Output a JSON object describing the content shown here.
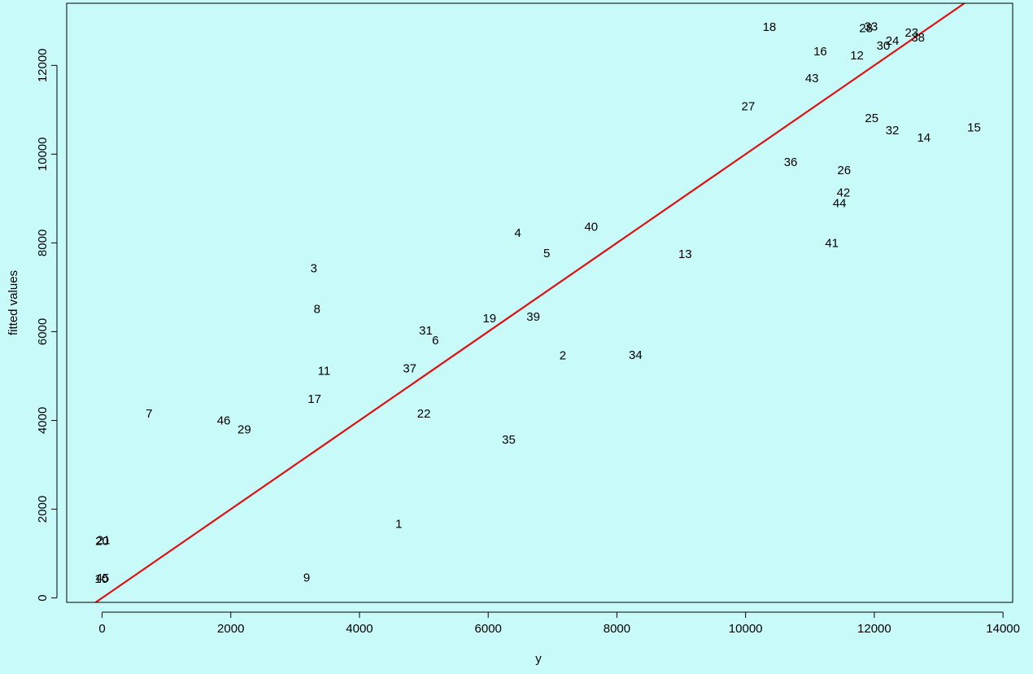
{
  "chart_data": {
    "type": "scatter",
    "title": "",
    "xlabel": "y",
    "ylabel": "fitted values",
    "xlim": [
      -550,
      14150
    ],
    "ylim": [
      -100,
      13400
    ],
    "xticks": [
      0,
      2000,
      4000,
      6000,
      8000,
      10000,
      12000,
      14000
    ],
    "yticks": [
      0,
      2000,
      4000,
      6000,
      8000,
      10000,
      12000
    ],
    "xtick_labels": [
      "0",
      "2000",
      "4000",
      "6000",
      "8000",
      "10000",
      "12000",
      "14000"
    ],
    "ytick_labels": [
      "0",
      "2000",
      "4000",
      "6000",
      "8000",
      "10000",
      "12000"
    ],
    "grid": false,
    "reference_line": {
      "slope": 1,
      "intercept": 0,
      "color": "#e01010"
    },
    "points": [
      {
        "label": "1",
        "x": 4610,
        "y": 1660
      },
      {
        "label": "2",
        "x": 7160,
        "y": 5460
      },
      {
        "label": "3",
        "x": 3290,
        "y": 7420
      },
      {
        "label": "4",
        "x": 6460,
        "y": 8220
      },
      {
        "label": "5",
        "x": 6910,
        "y": 7760
      },
      {
        "label": "6",
        "x": 5180,
        "y": 5800
      },
      {
        "label": "7",
        "x": 730,
        "y": 4150
      },
      {
        "label": "8",
        "x": 3340,
        "y": 6500
      },
      {
        "label": "9",
        "x": 3180,
        "y": 450
      },
      {
        "label": "10",
        "x": -10,
        "y": 420
      },
      {
        "label": "11",
        "x": 3450,
        "y": 5110
      },
      {
        "label": "12",
        "x": 11730,
        "y": 12220
      },
      {
        "label": "13",
        "x": 9060,
        "y": 7740
      },
      {
        "label": "14",
        "x": 12770,
        "y": 10360
      },
      {
        "label": "15",
        "x": 13550,
        "y": 10590
      },
      {
        "label": "16",
        "x": 11160,
        "y": 12310
      },
      {
        "label": "17",
        "x": 3300,
        "y": 4480
      },
      {
        "label": "18",
        "x": 10370,
        "y": 12860
      },
      {
        "label": "19",
        "x": 6020,
        "y": 6290
      },
      {
        "label": "20",
        "x": 0,
        "y": 1280
      },
      {
        "label": "21",
        "x": 20,
        "y": 1290
      },
      {
        "label": "22",
        "x": 5000,
        "y": 4150
      },
      {
        "label": "23",
        "x": 12580,
        "y": 12730
      },
      {
        "label": "24",
        "x": 12280,
        "y": 12550
      },
      {
        "label": "25",
        "x": 11960,
        "y": 10800
      },
      {
        "label": "26",
        "x": 11530,
        "y": 9630
      },
      {
        "label": "27",
        "x": 10040,
        "y": 11070
      },
      {
        "label": "28",
        "x": 11870,
        "y": 12830
      },
      {
        "label": "29",
        "x": 2210,
        "y": 3790
      },
      {
        "label": "30",
        "x": 12140,
        "y": 12440
      },
      {
        "label": "31",
        "x": 5030,
        "y": 6020
      },
      {
        "label": "32",
        "x": 12280,
        "y": 10530
      },
      {
        "label": "33",
        "x": 11950,
        "y": 12870
      },
      {
        "label": "34",
        "x": 8290,
        "y": 5470
      },
      {
        "label": "35",
        "x": 6320,
        "y": 3560
      },
      {
        "label": "36",
        "x": 10700,
        "y": 9810
      },
      {
        "label": "37",
        "x": 4780,
        "y": 5160
      },
      {
        "label": "38",
        "x": 12680,
        "y": 12620
      },
      {
        "label": "39",
        "x": 6700,
        "y": 6330
      },
      {
        "label": "40",
        "x": 7600,
        "y": 8360
      },
      {
        "label": "41",
        "x": 11340,
        "y": 7990
      },
      {
        "label": "42",
        "x": 11520,
        "y": 9130
      },
      {
        "label": "43",
        "x": 11030,
        "y": 11700
      },
      {
        "label": "44",
        "x": 11460,
        "y": 8890
      },
      {
        "label": "45",
        "x": 5,
        "y": 440
      },
      {
        "label": "46",
        "x": 1890,
        "y": 3990
      }
    ]
  }
}
